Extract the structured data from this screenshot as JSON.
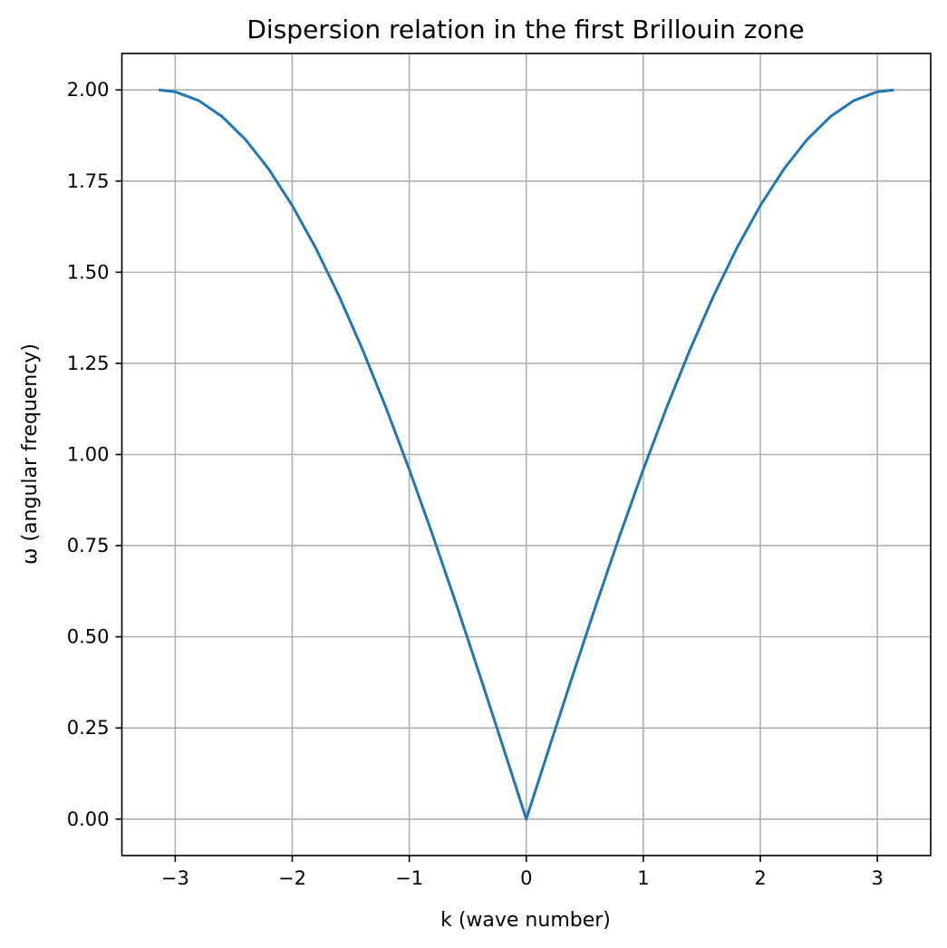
{
  "chart_data": {
    "type": "line",
    "title": "Dispersion relation in the first Brillouin zone",
    "xlabel": "k (wave number)",
    "ylabel": "ω (angular frequency)",
    "xlim": [
      -3.4557519,
      3.4557519
    ],
    "ylim": [
      -0.1,
      2.1
    ],
    "grid": true,
    "x_ticks": [
      {
        "value": -3,
        "label": "−3"
      },
      {
        "value": -2,
        "label": "−2"
      },
      {
        "value": -1,
        "label": "−1"
      },
      {
        "value": 0,
        "label": "0"
      },
      {
        "value": 1,
        "label": "1"
      },
      {
        "value": 2,
        "label": "2"
      },
      {
        "value": 3,
        "label": "3"
      }
    ],
    "y_ticks": [
      {
        "value": 0.0,
        "label": "0.00"
      },
      {
        "value": 0.25,
        "label": "0.25"
      },
      {
        "value": 0.5,
        "label": "0.50"
      },
      {
        "value": 0.75,
        "label": "0.75"
      },
      {
        "value": 1.0,
        "label": "1.00"
      },
      {
        "value": 1.25,
        "label": "1.25"
      },
      {
        "value": 1.5,
        "label": "1.50"
      },
      {
        "value": 1.75,
        "label": "1.75"
      },
      {
        "value": 2.0,
        "label": "2.00"
      }
    ],
    "series": [
      {
        "color": "#1f77b4",
        "x": [
          -3.1416,
          -3.0,
          -2.8,
          -2.6,
          -2.4,
          -2.2,
          -2.0,
          -1.8,
          -1.6,
          -1.4,
          -1.2,
          -1.0,
          -0.8,
          -0.6,
          -0.4,
          -0.2,
          0.0,
          0.2,
          0.4,
          0.6,
          0.8,
          1.0,
          1.2,
          1.4,
          1.6,
          1.8,
          2.0,
          2.2,
          2.4,
          2.6,
          2.8,
          3.0,
          3.1416
        ],
        "y": [
          2.0,
          1.995,
          1.9709,
          1.9271,
          1.8641,
          1.7824,
          1.6829,
          1.5667,
          1.4347,
          1.2884,
          1.1293,
          0.9589,
          0.7788,
          0.5911,
          0.3973,
          0.1997,
          0.0,
          0.1997,
          0.3973,
          0.5911,
          0.7788,
          0.9589,
          1.1293,
          1.2884,
          1.4347,
          1.5667,
          1.6829,
          1.7824,
          1.8641,
          1.9271,
          1.9709,
          1.995,
          2.0
        ]
      }
    ]
  }
}
